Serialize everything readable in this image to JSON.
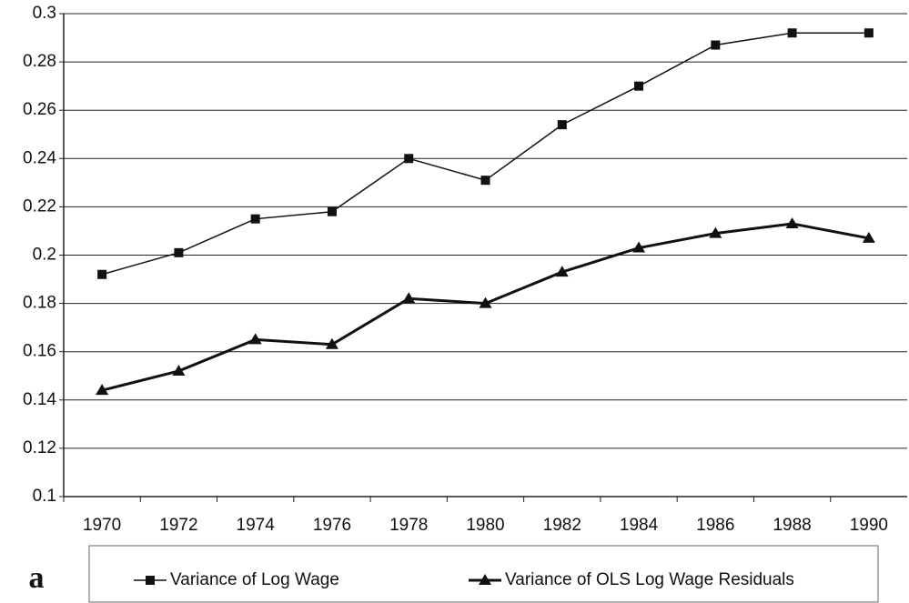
{
  "chart_data": {
    "type": "line",
    "annotation": "a",
    "categories": [
      "1970",
      "1972",
      "1974",
      "1976",
      "1978",
      "1980",
      "1982",
      "1984",
      "1986",
      "1988",
      "1990"
    ],
    "series": [
      {
        "name": "Variance of Log Wage",
        "color": "#111111",
        "marker": "square",
        "values": [
          0.192,
          0.201,
          0.215,
          0.218,
          0.24,
          0.231,
          0.254,
          0.27,
          0.287,
          0.292,
          0.292
        ]
      },
      {
        "name": "Variance of OLS Log Wage Residuals",
        "color": "#111111",
        "marker": "triangle",
        "values": [
          0.144,
          0.152,
          0.165,
          0.163,
          0.182,
          0.18,
          0.193,
          0.203,
          0.209,
          0.213,
          0.207
        ]
      }
    ],
    "ylim": [
      0.1,
      0.3
    ],
    "yticks": [
      0.1,
      0.12,
      0.14,
      0.16,
      0.18,
      0.2,
      0.22,
      0.24,
      0.26,
      0.28,
      0.3
    ],
    "grid": true,
    "legend": "bottom"
  }
}
